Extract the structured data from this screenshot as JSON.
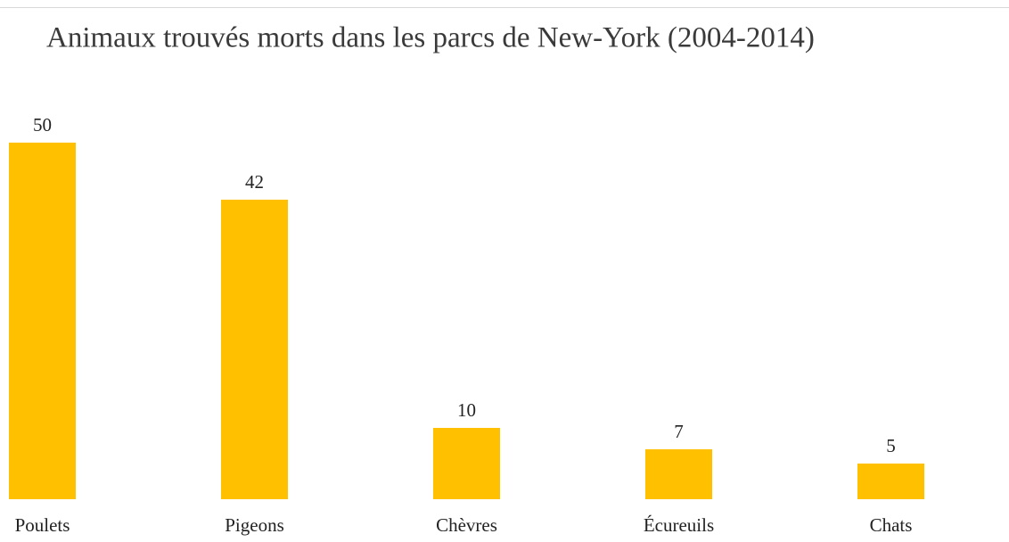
{
  "chart_data": {
    "type": "bar",
    "title": "Animaux trouvés morts dans les parcs de New-York (2004-2014)",
    "categories": [
      "Poulets",
      "Pigeons",
      "Chèvres",
      "Écureuils",
      "Chats"
    ],
    "values": [
      50,
      42,
      10,
      7,
      5
    ],
    "color": "#ffc000"
  }
}
